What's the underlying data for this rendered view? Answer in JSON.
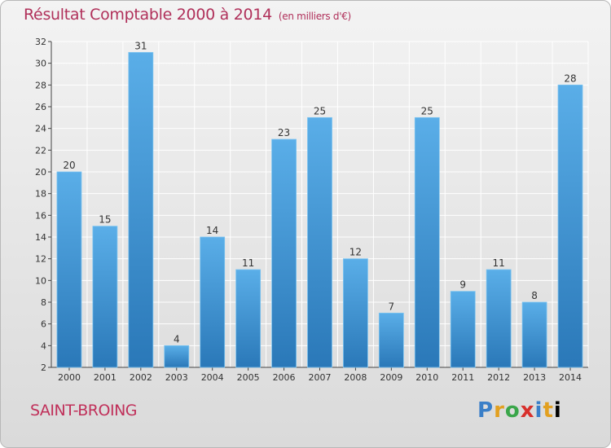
{
  "title": "Résultat Comptable 2000 à 2014",
  "title_unit": "(en milliers d'€)",
  "commune": "SAINT-BROING",
  "logo_letters": [
    "P",
    "r",
    "o",
    "x",
    "i",
    "t",
    "i"
  ],
  "colors": {
    "title": "#b0305a",
    "bar_top": "#5aaee8",
    "bar_bottom": "#2a78b8",
    "grid": "#ffffff"
  },
  "chart_data": {
    "type": "bar",
    "title": "Résultat Comptable 2000 à 2014",
    "ylabel": "en milliers d'€",
    "xlabel": "",
    "categories": [
      "2000",
      "2001",
      "2002",
      "2003",
      "2004",
      "2005",
      "2006",
      "2007",
      "2008",
      "2009",
      "2010",
      "2011",
      "2012",
      "2013",
      "2014"
    ],
    "values": [
      20,
      15,
      31,
      4,
      14,
      11,
      23,
      25,
      12,
      7,
      25,
      9,
      11,
      8,
      28
    ],
    "ylim": [
      2,
      32
    ],
    "yticks": [
      2,
      4,
      6,
      8,
      10,
      12,
      14,
      16,
      18,
      20,
      22,
      24,
      26,
      28,
      30,
      32
    ],
    "grid": true
  }
}
